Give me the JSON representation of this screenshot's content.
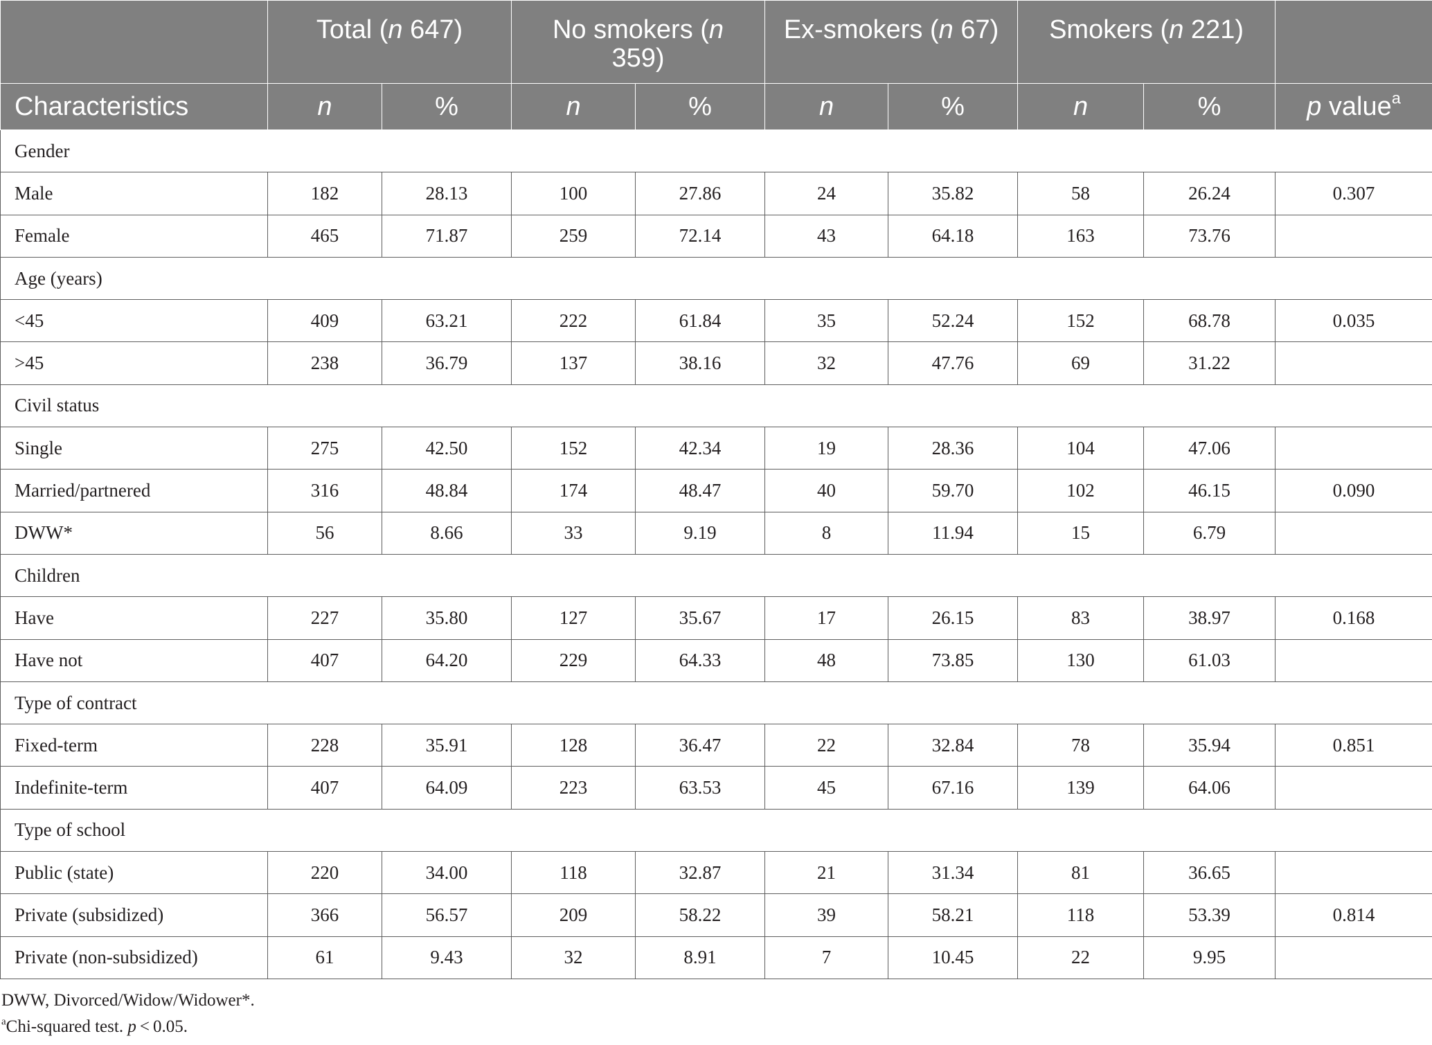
{
  "table": {
    "groups": [
      {
        "name": "Total",
        "n": "647"
      },
      {
        "name": "No smokers",
        "n": "359"
      },
      {
        "name": "Ex-smokers",
        "n": "67"
      },
      {
        "name": "Smokers",
        "n": "221"
      }
    ],
    "characteristics_label": "Characteristics",
    "n_label": "n",
    "pct_label": "%",
    "p_label_italic": "p",
    "p_label_rest": " value",
    "p_label_sup": "a",
    "sections": [
      {
        "title": "Gender",
        "rows": [
          {
            "label": "Male",
            "values": [
              "182",
              "28.13",
              "100",
              "27.86",
              "24",
              "35.82",
              "58",
              "26.24"
            ],
            "p": "0.307"
          },
          {
            "label": "Female",
            "values": [
              "465",
              "71.87",
              "259",
              "72.14",
              "43",
              "64.18",
              "163",
              "73.76"
            ],
            "p": ""
          }
        ]
      },
      {
        "title": "Age (years)",
        "rows": [
          {
            "label": "<45",
            "values": [
              "409",
              "63.21",
              "222",
              "61.84",
              "35",
              "52.24",
              "152",
              "68.78"
            ],
            "p": "0.035"
          },
          {
            "label": ">45",
            "values": [
              "238",
              "36.79",
              "137",
              "38.16",
              "32",
              "47.76",
              "69",
              "31.22"
            ],
            "p": ""
          }
        ]
      },
      {
        "title": "Civil status",
        "rows": [
          {
            "label": "Single",
            "values": [
              "275",
              "42.50",
              "152",
              "42.34",
              "19",
              "28.36",
              "104",
              "47.06"
            ],
            "p": ""
          },
          {
            "label": "Married/partnered",
            "values": [
              "316",
              "48.84",
              "174",
              "48.47",
              "40",
              "59.70",
              "102",
              "46.15"
            ],
            "p": "0.090"
          },
          {
            "label": "DWW*",
            "values": [
              "56",
              "8.66",
              "33",
              "9.19",
              "8",
              "11.94",
              "15",
              "6.79"
            ],
            "p": ""
          }
        ]
      },
      {
        "title": "Children",
        "rows": [
          {
            "label": "Have",
            "values": [
              "227",
              "35.80",
              "127",
              "35.67",
              "17",
              "26.15",
              "83",
              "38.97"
            ],
            "p": "0.168"
          },
          {
            "label": "Have not",
            "values": [
              "407",
              "64.20",
              "229",
              "64.33",
              "48",
              "73.85",
              "130",
              "61.03"
            ],
            "p": ""
          }
        ]
      },
      {
        "title": "Type of contract",
        "rows": [
          {
            "label": "Fixed-term",
            "values": [
              "228",
              "35.91",
              "128",
              "36.47",
              "22",
              "32.84",
              "78",
              "35.94"
            ],
            "p": "0.851"
          },
          {
            "label": "Indefinite-term",
            "values": [
              "407",
              "64.09",
              "223",
              "63.53",
              "45",
              "67.16",
              "139",
              "64.06"
            ],
            "p": ""
          }
        ]
      },
      {
        "title": "Type of school",
        "rows": [
          {
            "label": "Public (state)",
            "values": [
              "220",
              "34.00",
              "118",
              "32.87",
              "21",
              "31.34",
              "81",
              "36.65"
            ],
            "p": ""
          },
          {
            "label": "Private (subsidized)",
            "values": [
              "366",
              "56.57",
              "209",
              "58.22",
              "39",
              "58.21",
              "118",
              "53.39"
            ],
            "p": "0.814"
          },
          {
            "label": "Private (non-subsidized)",
            "values": [
              "61",
              "9.43",
              "32",
              "8.91",
              "7",
              "10.45",
              "22",
              "9.95"
            ],
            "p": ""
          }
        ]
      }
    ]
  },
  "notes": {
    "dww": "DWW, Divorced/Widow/Widower*.",
    "footnote_sup": "a",
    "footnote_text": "Chi-squared test. ",
    "footnote_p": "p",
    "footnote_rest": " < 0.05."
  }
}
